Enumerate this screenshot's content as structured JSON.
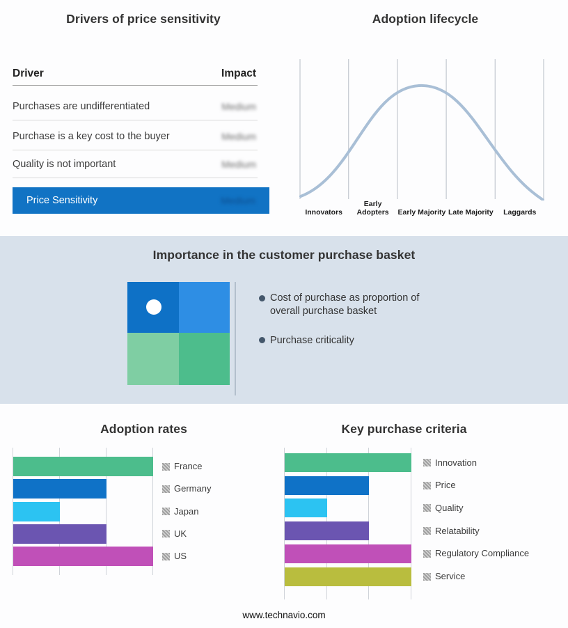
{
  "page": {
    "footer_link": "www.technavio.com",
    "band_bg": "#d8e1eb"
  },
  "drivers_panel": {
    "title": "Drivers of price sensitivity",
    "columns": {
      "driver": "Driver",
      "impact": "Impact"
    },
    "rows": [
      {
        "driver": "Purchases are undifferentiated",
        "impact": "Medium"
      },
      {
        "driver": "Purchase is a key cost to the buyer",
        "impact": "Medium"
      },
      {
        "driver": "Quality is not important",
        "impact": "Medium"
      }
    ],
    "summary_row": {
      "label": "Price Sensitivity",
      "impact": "Medium",
      "bg": "#1173c4"
    }
  },
  "basket_panel": {
    "title": "Importance in the customer purchase basket",
    "bullets": [
      "Cost of purchase as proportion of overall purchase basket",
      "Purchase criticality"
    ],
    "quadrant_colors": [
      "#0e71c6",
      "#2e8ee4",
      "#7fcea3",
      "#4dbd8c"
    ]
  },
  "chart_data": [
    {
      "id": "adoption-lifecycle",
      "type": "line",
      "title": "Adoption lifecycle",
      "categories": [
        "Innovators",
        "Early Adopters",
        "Early Majority",
        "Late Majority",
        "Laggards"
      ],
      "curve": "bell",
      "relative_heights": [
        0.12,
        0.55,
        1.0,
        0.55,
        0.08
      ],
      "line_color": "#a9bfd6",
      "grid": true,
      "legend_position": "none"
    },
    {
      "id": "adoption-rates",
      "type": "bar",
      "orientation": "horizontal",
      "title": "Adoption rates",
      "categories": [
        "France",
        "Germany",
        "Japan",
        "UK",
        "US"
      ],
      "values": [
        3,
        2,
        1,
        2,
        3
      ],
      "xlim": [
        0,
        3
      ],
      "xlabel": "",
      "ylabel": "",
      "colors": [
        "#4cbd8c",
        "#0f72c7",
        "#2cc3f2",
        "#6b55b1",
        "#c050b8"
      ],
      "grid": true,
      "legend_position": "right"
    },
    {
      "id": "key-purchase-criteria",
      "type": "bar",
      "orientation": "horizontal",
      "title": "Key purchase criteria",
      "categories": [
        "Innovation",
        "Price",
        "Quality",
        "Relatability",
        "Regulatory Compliance",
        "Service"
      ],
      "values": [
        3,
        2,
        1,
        2,
        3,
        3
      ],
      "xlim": [
        0,
        3
      ],
      "xlabel": "",
      "ylabel": "",
      "colors": [
        "#4cbd8c",
        "#0f72c7",
        "#2cc3f2",
        "#6b55b1",
        "#c050b8",
        "#b9bd3e"
      ],
      "grid": true,
      "legend_position": "right"
    }
  ]
}
